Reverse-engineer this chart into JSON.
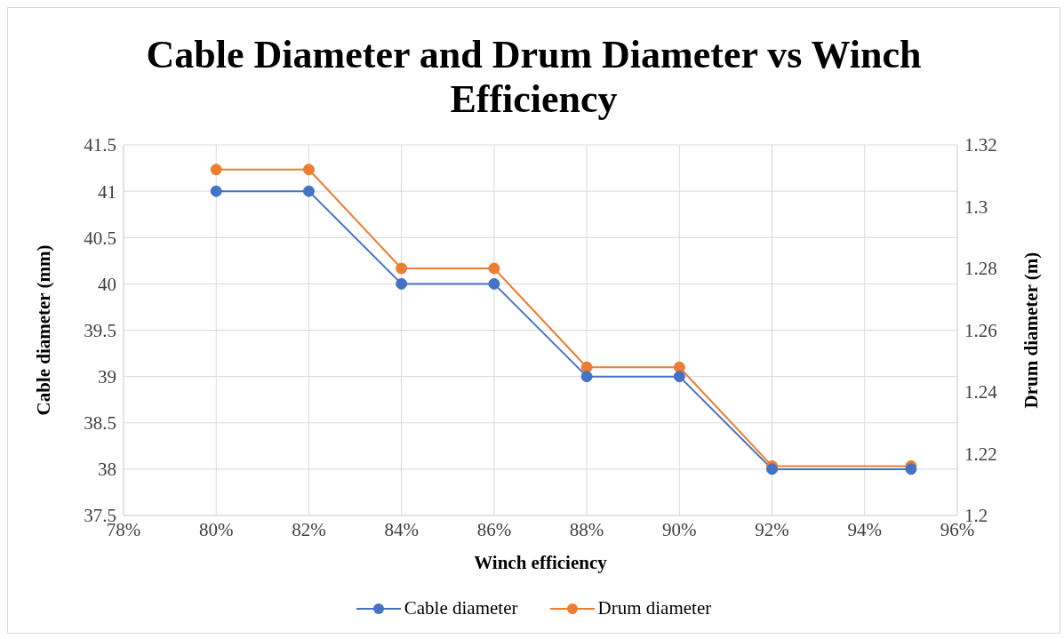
{
  "chart_data": {
    "type": "line",
    "title": "Cable Diameter and Drum Diameter vs Winch Efficiency",
    "xlabel": "Winch efficiency",
    "ylabel": "Cable diameter (mm)",
    "y2label": "Drum diameter (m)",
    "x": [
      80,
      82,
      84,
      86,
      88,
      90,
      92,
      95
    ],
    "series": [
      {
        "name": "Cable diameter",
        "color": "#4472c4",
        "values": [
          41,
          41,
          40,
          40,
          39,
          39,
          38,
          38
        ]
      },
      {
        "name": "Drum diameter",
        "color": "#ed7d31",
        "axis": "y2",
        "values": [
          1.312,
          1.312,
          1.28,
          1.28,
          1.248,
          1.248,
          1.216,
          1.216
        ]
      }
    ],
    "xlim": [
      78,
      96
    ],
    "xticks": [
      {
        "value": 78,
        "label": "78%"
      },
      {
        "value": 80,
        "label": "80%"
      },
      {
        "value": 82,
        "label": "82%"
      },
      {
        "value": 84,
        "label": "84%"
      },
      {
        "value": 86,
        "label": "86%"
      },
      {
        "value": 88,
        "label": "88%"
      },
      {
        "value": 90,
        "label": "90%"
      },
      {
        "value": 92,
        "label": "92%"
      },
      {
        "value": 94,
        "label": "94%"
      },
      {
        "value": 96,
        "label": "96%"
      }
    ],
    "ylim": [
      37.5,
      41.5
    ],
    "yticks": [
      37.5,
      38,
      38.5,
      39,
      39.5,
      40,
      40.5,
      41,
      41.5
    ],
    "y2lim": [
      1.2,
      1.32
    ],
    "y2ticks": [
      1.2,
      1.22,
      1.24,
      1.26,
      1.28,
      1.3,
      1.32
    ],
    "grid": true,
    "legend": "bottom",
    "marker": "circle",
    "line_style": "solid"
  }
}
